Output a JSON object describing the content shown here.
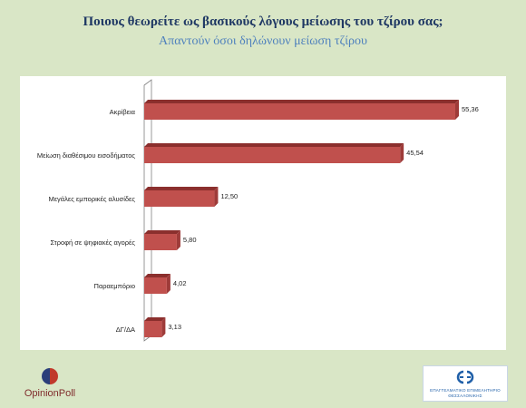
{
  "slide": {
    "title": "Ποιους θεωρείτε ως βασικούς λόγους μείωσης του τζίρου σας;",
    "subtitle": "Απαντούν όσοι δηλώνουν μείωση τζίρου"
  },
  "chart_data": {
    "type": "bar",
    "orientation": "horizontal",
    "style": "3d",
    "categories": [
      "Ακρίβεια",
      "Μείωση διαθέσιμου εισοδήματος",
      "Μεγάλες εμπορικές αλυσίδες",
      "Στροφή σε ψηφιακές αγορές",
      "Παραεμπόριο",
      "ΔΓ/ΔΑ"
    ],
    "values": [
      55.36,
      45.54,
      12.5,
      5.8,
      4.02,
      3.13
    ],
    "value_labels": [
      "55,36",
      "45,54",
      "12,50",
      "5,80",
      "4,02",
      "3,13"
    ],
    "xlim": [
      0,
      60
    ],
    "grid": false,
    "legend": "none",
    "bar_color": "#c0504d",
    "bar_top_color": "#8b2f2d"
  },
  "logos": {
    "opinion_poll": {
      "text": "OpinionPoll"
    },
    "chamber": {
      "line1": "ΕΠΑΓΓΕΛΜΑΤΙΚΟ ΕΠΙΜΕΛΗΤΗΡΙΟ",
      "line2": "ΘΕΣΣΑΛΟΝΙΚΗΣ"
    }
  },
  "colors": {
    "background": "#d9e6c6",
    "title": "#1f3864",
    "subtitle": "#4f81bd",
    "brand": "#7f2b2b"
  }
}
